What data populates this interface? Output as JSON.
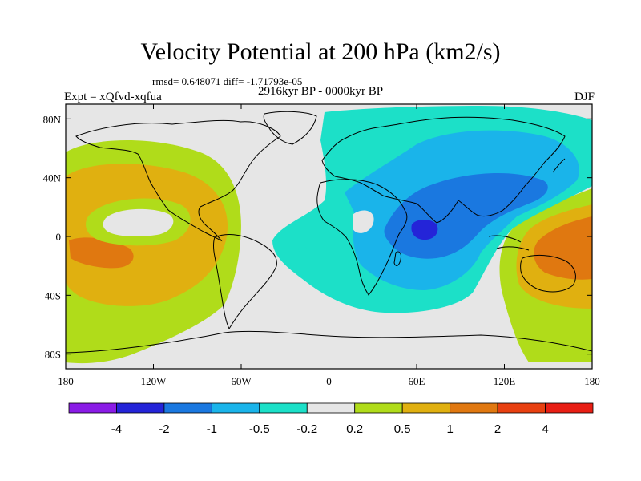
{
  "title": "Velocity Potential at 200 hPa (km2/s)",
  "stats": "rmsd= 0.648071 diff= -1.71793e-05",
  "expt": "Expt = xQfvd-xqfua",
  "period": "2916kyr BP - 0000kyr BP",
  "season": "DJF",
  "chart_data": {
    "type": "heatmap",
    "projection": "cylindrical-equidistant",
    "lon_range": [
      -180,
      180
    ],
    "lat_range": [
      -90,
      90
    ],
    "x_ticks": [
      {
        "lon": -180,
        "label": "180"
      },
      {
        "lon": -120,
        "label": "120W"
      },
      {
        "lon": -60,
        "label": "60W"
      },
      {
        "lon": 0,
        "label": "0"
      },
      {
        "lon": 60,
        "label": "60E"
      },
      {
        "lon": 120,
        "label": "120E"
      },
      {
        "lon": 180,
        "label": "180"
      }
    ],
    "y_ticks": [
      {
        "lat": 80,
        "label": "80N"
      },
      {
        "lat": 40,
        "label": "40N"
      },
      {
        "lat": 0,
        "label": "0"
      },
      {
        "lat": -40,
        "label": "40S"
      },
      {
        "lat": -80,
        "label": "80S"
      }
    ],
    "colorbar": {
      "colors": [
        "#8a1ce6",
        "#2424d8",
        "#1a78e0",
        "#1ab4ea",
        "#1ce0c8",
        "#e6e6e6",
        "#b0dc1a",
        "#e0b010",
        "#e07810",
        "#e84010",
        "#e81e14"
      ],
      "levels": [
        "-4",
        "-2",
        "-1",
        "-0.5",
        "-0.2",
        "0.2",
        "0.5",
        "1",
        "2",
        "4"
      ]
    }
  }
}
